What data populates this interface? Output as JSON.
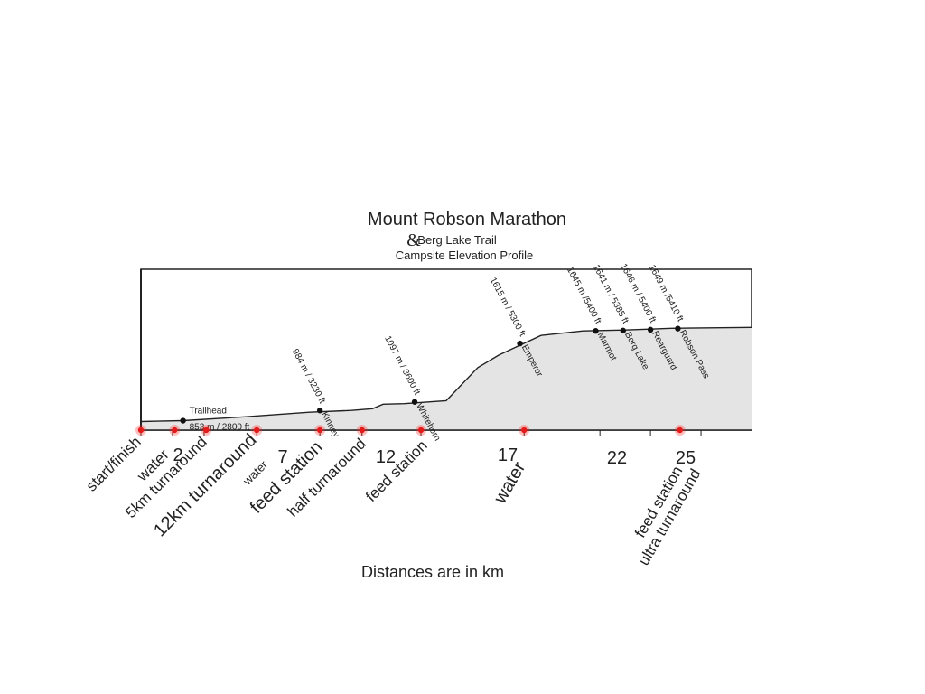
{
  "chart_data": {
    "type": "area",
    "title": "Mount Robson Marathon",
    "subtitle_amp": "&",
    "subtitle": "Berg Lake Trail",
    "subtitle2": "Campsite Elevation Profile",
    "footnote": "Distances are in km",
    "xlim": [
      0,
      29
    ],
    "ylim": [
      800,
      1700
    ],
    "profile": [
      {
        "x": 0,
        "y": 848
      },
      {
        "x": 0.8,
        "y": 850
      },
      {
        "x": 2,
        "y": 853
      },
      {
        "x": 5,
        "y": 875
      },
      {
        "x": 8,
        "y": 900
      },
      {
        "x": 10,
        "y": 910
      },
      {
        "x": 11,
        "y": 920
      },
      {
        "x": 11.5,
        "y": 945
      },
      {
        "x": 12.5,
        "y": 948
      },
      {
        "x": 14.5,
        "y": 965
      },
      {
        "x": 16,
        "y": 1150
      },
      {
        "x": 17,
        "y": 1220
      },
      {
        "x": 19,
        "y": 1330
      },
      {
        "x": 21,
        "y": 1355
      },
      {
        "x": 23,
        "y": 1360
      },
      {
        "x": 25.2,
        "y": 1370
      },
      {
        "x": 29,
        "y": 1375
      }
    ],
    "x_ticks": [
      2,
      7,
      12,
      17,
      22,
      25
    ],
    "tick_marks": [
      0,
      1.5,
      3,
      5.5,
      8.5,
      10.5,
      13.3,
      18.2,
      21.8,
      24.2,
      26.6
    ],
    "campsites": [
      {
        "name": "Trailhead",
        "elev": "853 m / 2800 ft",
        "x": 2,
        "y": 853
      },
      {
        "name": "Kinney",
        "elev": "984 m / 3230 ft",
        "x": 8.5,
        "y": 910
      },
      {
        "name": "Whitehorn",
        "elev": "1097 m / 3600 ft",
        "x": 13,
        "y": 958
      },
      {
        "name": "Emperor",
        "elev": "1615 m / 5300 ft",
        "x": 18,
        "y": 1285
      },
      {
        "name": "Marmot",
        "elev": "1645 m /5400 ft",
        "x": 21.6,
        "y": 1355
      },
      {
        "name": "Berg Lake",
        "elev": "1641 m / 5385 ft",
        "x": 22.9,
        "y": 1357
      },
      {
        "name": "Rearguard",
        "elev": "1646 m / 5400 ft",
        "x": 24.2,
        "y": 1362
      },
      {
        "name": "Robson Pass",
        "elev": "1649 m /5410 ft",
        "x": 25.5,
        "y": 1368
      }
    ],
    "race_points": [
      0,
      1.6,
      3.1,
      5.5,
      8.5,
      10.5,
      13.3,
      18.2,
      25.6
    ],
    "race_labels": [
      {
        "text": "start/finish",
        "x": 0
      },
      {
        "text": "water",
        "x": 1.5
      },
      {
        "text": "5km turnaround",
        "x": 3
      },
      {
        "text": "12km turnaround",
        "x": 5.5
      },
      {
        "text": "water",
        "x": 5.5
      },
      {
        "text": "feed station",
        "x": 8.5
      },
      {
        "text": "half turnaround",
        "x": 10.5
      },
      {
        "text": "feed station",
        "x": 13.3
      },
      {
        "text": "water",
        "x": 18.2
      },
      {
        "text": "feed station",
        "x": 25.6
      },
      {
        "text": "ultra turnaround",
        "x": 25.6
      }
    ]
  }
}
